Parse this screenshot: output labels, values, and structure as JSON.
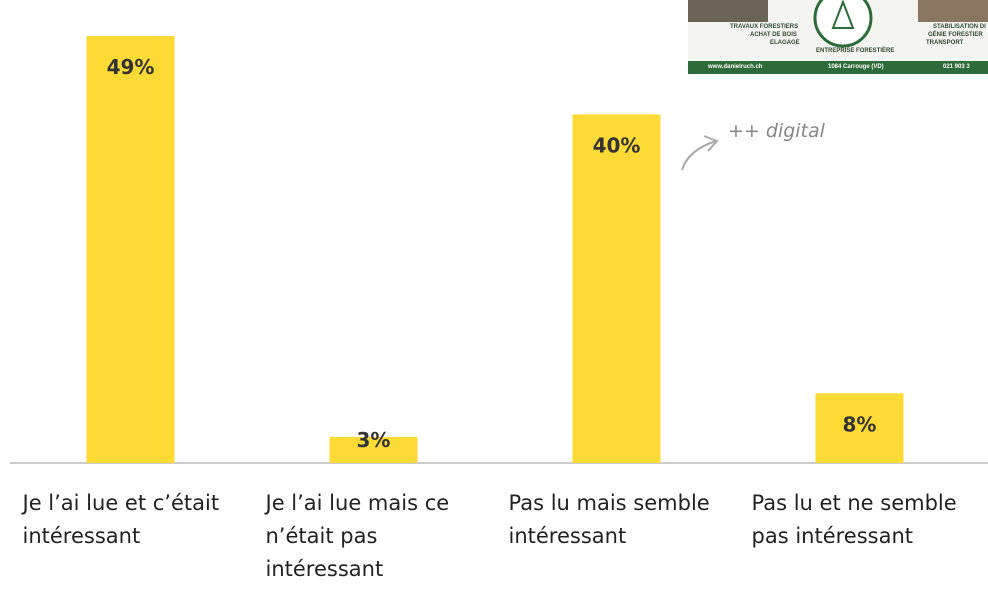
{
  "chart_data": {
    "type": "bar",
    "categories": [
      "Je l’ai lue et c’était intéressant",
      "Je l’ai lue mais ce n’était pas intéressant",
      "Pas lu mais semble intéressant",
      "Pas lu et ne semble pas intéressant"
    ],
    "values": [
      49,
      3,
      40,
      8
    ],
    "value_labels": [
      "49%",
      "3%",
      "40%",
      "8%"
    ],
    "color": "#fdda35",
    "annotation": "++ digital"
  },
  "logo": {
    "services_left": [
      "TRAVAUX FORESTIERS",
      "ACHAT DE BOIS",
      "ELAGAGE"
    ],
    "services_right": [
      "STABILISATION DI",
      "GÉNIE FORESTIER",
      "TRANSPORT"
    ],
    "tagline": "ENTREPRISE FORESTIÈRE",
    "website": "www.danielruch.ch",
    "address": "1084 Carrouge (VD)",
    "phone": "021 903 3"
  }
}
